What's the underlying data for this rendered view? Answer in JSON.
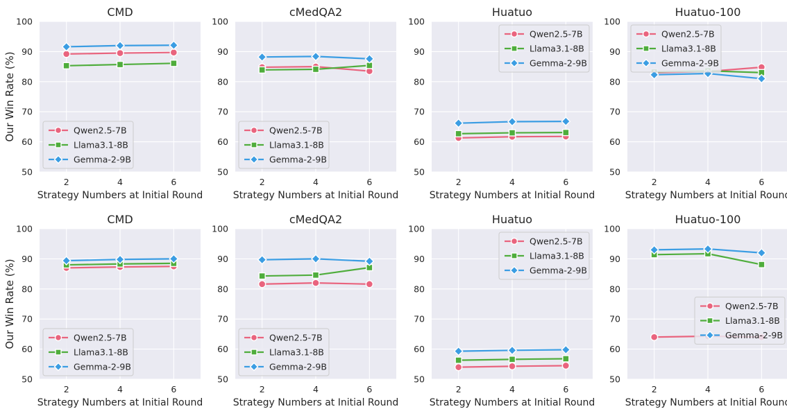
{
  "chart_data": [
    {
      "type": "line",
      "title": "CMD",
      "xlabel": "Strategy Numbers at Initial Round",
      "ylabel": "Our Win Rate (%)",
      "x": [
        2,
        4,
        6
      ],
      "xlim": [
        1,
        7
      ],
      "ylim": [
        50,
        100
      ],
      "yticks": [
        50,
        60,
        70,
        80,
        90,
        100
      ],
      "grid": true,
      "legend": "lower-left",
      "series": [
        {
          "name": "Qwen2.5-7B",
          "values": [
            89.2,
            89.5,
            89.7
          ],
          "color": "#e9647e",
          "marker": "circle"
        },
        {
          "name": "Llama3.1-8B",
          "values": [
            85.3,
            85.7,
            86.1
          ],
          "color": "#4fad3c",
          "marker": "square"
        },
        {
          "name": "Gemma-2-9B",
          "values": [
            91.6,
            92.0,
            92.1
          ],
          "color": "#3b9de3",
          "marker": "diamond"
        }
      ]
    },
    {
      "type": "line",
      "title": "cMedQA2",
      "xlabel": "Strategy Numbers at Initial Round",
      "ylabel": "",
      "x": [
        2,
        4,
        6
      ],
      "xlim": [
        1,
        7
      ],
      "ylim": [
        50,
        100
      ],
      "yticks": [
        50,
        60,
        70,
        80,
        90,
        100
      ],
      "grid": true,
      "legend": "lower-left",
      "series": [
        {
          "name": "Qwen2.5-7B",
          "values": [
            84.8,
            85.0,
            83.5
          ],
          "color": "#e9647e",
          "marker": "circle"
        },
        {
          "name": "Llama3.1-8B",
          "values": [
            83.9,
            84.1,
            85.4
          ],
          "color": "#4fad3c",
          "marker": "square"
        },
        {
          "name": "Gemma-2-9B",
          "values": [
            88.2,
            88.4,
            87.6
          ],
          "color": "#3b9de3",
          "marker": "diamond"
        }
      ]
    },
    {
      "type": "line",
      "title": "Huatuo",
      "xlabel": "Strategy Numbers at Initial Round",
      "ylabel": "",
      "x": [
        2,
        4,
        6
      ],
      "xlim": [
        1,
        7
      ],
      "ylim": [
        50,
        100
      ],
      "yticks": [
        50,
        60,
        70,
        80,
        90,
        100
      ],
      "grid": true,
      "legend": "upper-right",
      "series": [
        {
          "name": "Qwen2.5-7B",
          "values": [
            61.3,
            61.7,
            61.8
          ],
          "color": "#e9647e",
          "marker": "circle"
        },
        {
          "name": "Llama3.1-8B",
          "values": [
            62.7,
            63.0,
            63.1
          ],
          "color": "#4fad3c",
          "marker": "square"
        },
        {
          "name": "Gemma-2-9B",
          "values": [
            66.2,
            66.7,
            66.8
          ],
          "color": "#3b9de3",
          "marker": "diamond"
        }
      ]
    },
    {
      "type": "line",
      "title": "Huatuo-100",
      "xlabel": "Strategy Numbers at Initial Round",
      "ylabel": "",
      "x": [
        2,
        4,
        6
      ],
      "xlim": [
        1,
        7
      ],
      "ylim": [
        50,
        100
      ],
      "yticks": [
        50,
        60,
        70,
        80,
        90,
        100
      ],
      "grid": true,
      "legend": "upper-left",
      "series": [
        {
          "name": "Qwen2.5-7B",
          "values": [
            83.0,
            83.4,
            84.8
          ],
          "color": "#e9647e",
          "marker": "circle"
        },
        {
          "name": "Llama3.1-8B",
          "values": [
            83.2,
            83.6,
            83.0
          ],
          "color": "#4fad3c",
          "marker": "square"
        },
        {
          "name": "Gemma-2-9B",
          "values": [
            82.3,
            82.7,
            81.0
          ],
          "color": "#3b9de3",
          "marker": "diamond"
        }
      ]
    },
    {
      "type": "line",
      "title": "CMD",
      "xlabel": "Strategy Numbers at Initial Round",
      "ylabel": "Our Win Rate (%)",
      "x": [
        2,
        4,
        6
      ],
      "xlim": [
        1,
        7
      ],
      "ylim": [
        50,
        100
      ],
      "yticks": [
        50,
        60,
        70,
        80,
        90,
        100
      ],
      "grid": true,
      "legend": "lower-left",
      "series": [
        {
          "name": "Qwen2.5-7B",
          "values": [
            87.0,
            87.3,
            87.5
          ],
          "color": "#e9647e",
          "marker": "circle"
        },
        {
          "name": "Llama3.1-8B",
          "values": [
            88.0,
            88.3,
            88.5
          ],
          "color": "#4fad3c",
          "marker": "square"
        },
        {
          "name": "Gemma-2-9B",
          "values": [
            89.4,
            89.8,
            90.0
          ],
          "color": "#3b9de3",
          "marker": "diamond"
        }
      ]
    },
    {
      "type": "line",
      "title": "cMedQA2",
      "xlabel": "Strategy Numbers at Initial Round",
      "ylabel": "",
      "x": [
        2,
        4,
        6
      ],
      "xlim": [
        1,
        7
      ],
      "ylim": [
        50,
        100
      ],
      "yticks": [
        50,
        60,
        70,
        80,
        90,
        100
      ],
      "grid": true,
      "legend": "lower-left",
      "series": [
        {
          "name": "Qwen2.5-7B",
          "values": [
            81.6,
            82.0,
            81.6
          ],
          "color": "#e9647e",
          "marker": "circle"
        },
        {
          "name": "Llama3.1-8B",
          "values": [
            84.3,
            84.6,
            87.1
          ],
          "color": "#4fad3c",
          "marker": "square"
        },
        {
          "name": "Gemma-2-9B",
          "values": [
            89.7,
            90.0,
            89.2
          ],
          "color": "#3b9de3",
          "marker": "diamond"
        }
      ]
    },
    {
      "type": "line",
      "title": "Huatuo",
      "xlabel": "Strategy Numbers at Initial Round",
      "ylabel": "",
      "x": [
        2,
        4,
        6
      ],
      "xlim": [
        1,
        7
      ],
      "ylim": [
        50,
        100
      ],
      "yticks": [
        50,
        60,
        70,
        80,
        90,
        100
      ],
      "grid": true,
      "legend": "upper-right",
      "series": [
        {
          "name": "Qwen2.5-7B",
          "values": [
            54.0,
            54.3,
            54.5
          ],
          "color": "#e9647e",
          "marker": "circle"
        },
        {
          "name": "Llama3.1-8B",
          "values": [
            56.3,
            56.6,
            56.8
          ],
          "color": "#4fad3c",
          "marker": "square"
        },
        {
          "name": "Gemma-2-9B",
          "values": [
            59.3,
            59.6,
            59.8
          ],
          "color": "#3b9de3",
          "marker": "diamond"
        }
      ]
    },
    {
      "type": "line",
      "title": "Huatuo-100",
      "xlabel": "Strategy Numbers at Initial Round",
      "ylabel": "",
      "x": [
        2,
        4,
        6
      ],
      "xlim": [
        1,
        7
      ],
      "ylim": [
        50,
        100
      ],
      "yticks": [
        50,
        60,
        70,
        80,
        90,
        100
      ],
      "grid": true,
      "legend": "center-right",
      "series": [
        {
          "name": "Qwen2.5-7B",
          "values": [
            64.0,
            64.3,
            64.0
          ],
          "color": "#e9647e",
          "marker": "circle"
        },
        {
          "name": "Llama3.1-8B",
          "values": [
            91.4,
            91.7,
            88.1
          ],
          "color": "#4fad3c",
          "marker": "square"
        },
        {
          "name": "Gemma-2-9B",
          "values": [
            93.0,
            93.3,
            92.0
          ],
          "color": "#3b9de3",
          "marker": "diamond"
        }
      ]
    }
  ]
}
